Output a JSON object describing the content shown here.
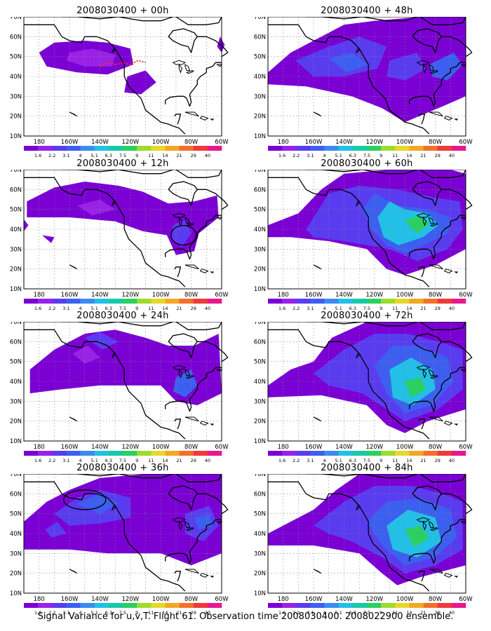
{
  "panels": [
    {
      "title": "2008030400 + 00h",
      "forecast_hour": 0
    },
    {
      "title": "2008030400 + 48h",
      "forecast_hour": 48
    },
    {
      "title": "2008030400 + 12h",
      "forecast_hour": 12
    },
    {
      "title": "2008030400 + 60h",
      "forecast_hour": 60
    },
    {
      "title": "2008030400 + 24h",
      "forecast_hour": 24
    },
    {
      "title": "2008030400 + 72h",
      "forecast_hour": 72
    },
    {
      "title": "2008030400 + 36h",
      "forecast_hour": 36
    },
    {
      "title": "2008030400 + 84h",
      "forecast_hour": 84
    }
  ],
  "map": {
    "lat_labels": [
      "70N",
      "60N",
      "50N",
      "40N",
      "30N",
      "20N",
      "10N"
    ],
    "lon_labels": [
      "180",
      "160W",
      "140W",
      "120W",
      "100W",
      "80W",
      "60W"
    ]
  },
  "colorbar": {
    "labels": [
      "1.6",
      "2.2",
      "3.1",
      "4",
      "5.1",
      "6.3",
      "7.5",
      "9",
      "11",
      "14",
      "21",
      "29",
      "40"
    ],
    "colors": [
      "#7a00d4",
      "#9a22e6",
      "#5a3cf0",
      "#3c5ff0",
      "#3a8cf0",
      "#22c0e6",
      "#18c9a8",
      "#2ad060",
      "#9bdc2c",
      "#e6d82a",
      "#f2a824",
      "#f2702a",
      "#ee3a3a",
      "#e8188c"
    ]
  },
  "caption": "Signal Variance for u,v,T. Flight 61. Observation time 2008030400. 2008022900 ensemble."
}
